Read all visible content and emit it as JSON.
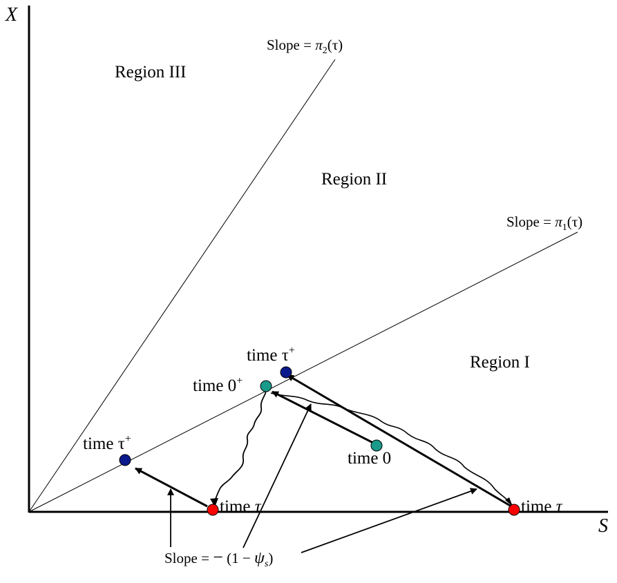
{
  "axes": {
    "x_label": "S",
    "y_label": "X"
  },
  "regions": {
    "region_1": "Region I",
    "region_2": "Region II",
    "region_3": "Region III"
  },
  "slope_labels": {
    "pi2": {
      "prefix": "Slope = ",
      "symbol": "π",
      "sub": "2",
      "arg": "(τ)"
    },
    "pi1": {
      "prefix": "Slope = ",
      "symbol": "π",
      "sub": "1",
      "arg": "(τ)"
    },
    "transaction": {
      "prefix": "Slope = ",
      "minus": "−",
      "open": " (1 − ",
      "symbol": "ψ",
      "sub": "s",
      "close": ")"
    }
  },
  "points": {
    "time_tau_plus_left": {
      "base": "time ",
      "sym": "τ",
      "sup": "+"
    },
    "time_tau_plus_right": {
      "base": "time ",
      "sym": "τ",
      "sup": "+"
    },
    "time_zero_plus": {
      "base": "time 0",
      "sup": "+"
    },
    "time_zero": {
      "text": "time 0"
    },
    "time_tau_left": {
      "base": "time ",
      "sym": "τ"
    },
    "time_tau_right": {
      "base": "time ",
      "sym": "τ"
    }
  },
  "colors": {
    "blue_dot": "#0a1a8c",
    "teal_dot": "#1a9a8a",
    "red_dot": "#ff0000",
    "ink": "#000000"
  }
}
